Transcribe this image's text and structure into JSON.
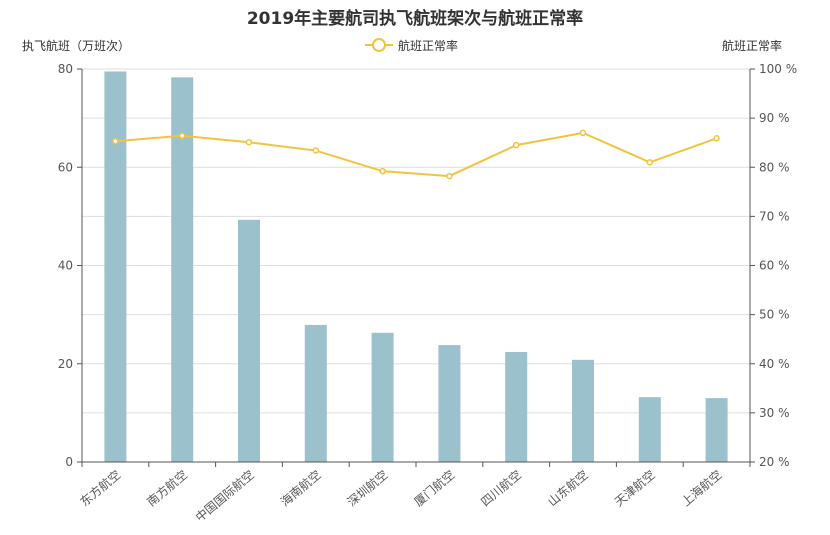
{
  "chart_data": {
    "type": "bar+line",
    "title": "2019年主要航司执飞航班架次与航班正常率",
    "ylabel_left": "执飞航班（万班次）",
    "ylabel_right": "航班正常率",
    "legend": [
      {
        "name": "航班正常率",
        "placement": "top-center"
      }
    ],
    "categories": [
      "东方航空",
      "南方航空",
      "中国国际航空",
      "海南航空",
      "深圳航空",
      "厦门航空",
      "四川航空",
      "山东航空",
      "天津航空",
      "上海航空"
    ],
    "series": [
      {
        "name": "执飞航班",
        "type": "bar",
        "axis": "left",
        "values": [
          79.5,
          78.3,
          49.3,
          27.9,
          26.3,
          23.8,
          22.4,
          20.8,
          13.2,
          13.0
        ]
      },
      {
        "name": "航班正常率",
        "type": "line",
        "axis": "right",
        "values": [
          85.3,
          86.4,
          85.1,
          83.4,
          79.2,
          78.2,
          84.5,
          87.0,
          81.0,
          85.9
        ]
      }
    ],
    "ylim_left": [
      0,
      80
    ],
    "yticks_left": [
      "0",
      "20",
      "40",
      "60",
      "80"
    ],
    "ylim_right": [
      20,
      100
    ],
    "yticks_right": [
      "20 %",
      "30 %",
      "40 %",
      "50 %",
      "60 %",
      "70 %",
      "80 %",
      "90 %",
      "100 %"
    ],
    "grid": true,
    "colors": {
      "bar": "#9bc1cc",
      "line": "#f2c43d"
    }
  }
}
